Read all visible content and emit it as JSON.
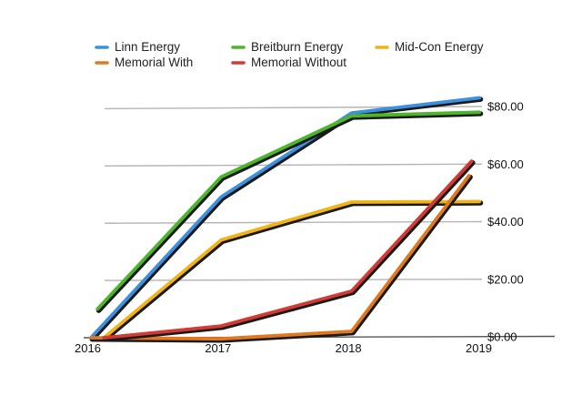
{
  "chart_data": {
    "type": "line",
    "x": [
      "2016",
      "2017",
      "2018",
      "2019"
    ],
    "y_ticks": [
      "$0.00",
      "$20.00",
      "$40.00",
      "$60.00",
      "$80.00"
    ],
    "y_tick_values": [
      0,
      20,
      40,
      60,
      80
    ],
    "ylim": [
      0,
      85
    ],
    "grid": true,
    "legend_position": "top",
    "series": [
      {
        "name": "Linn Energy",
        "color": "#3d8fe0",
        "points": [
          [
            0,
            0
          ],
          [
            1,
            49
          ],
          [
            2,
            78
          ],
          [
            2.98,
            83
          ]
        ]
      },
      {
        "name": "Breitburn Energy",
        "color": "#4cb52c",
        "points": [
          [
            0.05,
            10
          ],
          [
            1,
            56
          ],
          [
            2,
            77
          ],
          [
            2.98,
            78
          ]
        ]
      },
      {
        "name": "Mid-Con Energy",
        "color": "#f2b316",
        "points": [
          [
            0.1,
            0
          ],
          [
            1,
            34
          ],
          [
            2,
            47
          ],
          [
            2.98,
            47
          ]
        ]
      },
      {
        "name": "Memorial With",
        "color": "#e0781f",
        "points": [
          [
            0,
            0
          ],
          [
            1,
            -0.5
          ],
          [
            2,
            2
          ],
          [
            2.9,
            56
          ]
        ]
      },
      {
        "name": "Memorial Without",
        "color": "#d33a34",
        "points": [
          [
            0.1,
            0
          ],
          [
            1,
            4
          ],
          [
            2,
            16
          ],
          [
            2.92,
            61
          ]
        ]
      }
    ]
  }
}
